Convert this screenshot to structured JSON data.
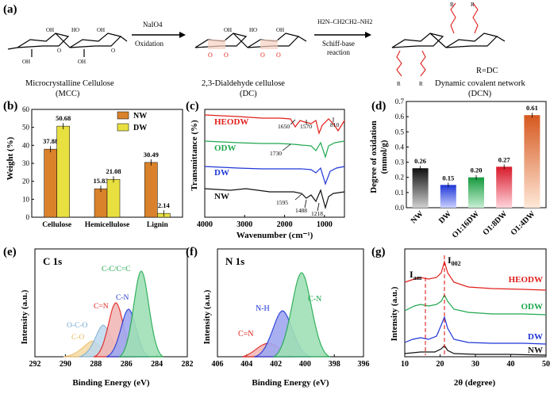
{
  "panels": {
    "a": {
      "label": "(a)",
      "step1_reagent": "NaIO4",
      "step1_name": "Oxidation",
      "step2_reagent": "H2N–CH2CH2–NH2",
      "step2_name_line1": "Schiff-base",
      "step2_name_line2": "reaction",
      "mcc_name": "Microcrystalline Cellulose",
      "mcc_abbr": "(MCC)",
      "dc_name": "2,3-Dialdehyde cellulose",
      "dc_abbr": "(DC)",
      "dcn_name": "Dynamic covalent network",
      "dcn_abbr": "(DCN)",
      "r_def": "R=DC"
    },
    "b": {
      "label": "(b)",
      "ylabel": "Weight (%)",
      "legend": [
        "NW",
        "DW"
      ],
      "colors": [
        "#d9822b",
        "#e8e040"
      ]
    },
    "c": {
      "label": "(c)",
      "xlabel": "Wavenumber (cm⁻¹)",
      "ylabel": "Transmittance (%)",
      "series_labels": [
        "HEODW",
        "ODW",
        "DW",
        "NW"
      ],
      "colors": [
        "#e0201b",
        "#1fa84e",
        "#1f36d6",
        "#111111"
      ],
      "annotations": [
        "1650",
        "1570",
        "810",
        "1730",
        "1595",
        "1488",
        "1218"
      ]
    },
    "d": {
      "label": "(d)",
      "ylabel_line1": "Degree of oxidation",
      "ylabel_line2": "(mmol/g)"
    },
    "e": {
      "label": "(e)",
      "title": "C 1s",
      "xlabel": "Binding Energy (eV)",
      "ylabel": "Intensity (a.u.)",
      "peaks": [
        "C-C/C=C",
        "C-N",
        "C=N",
        "O-C-O",
        "C-O"
      ]
    },
    "f": {
      "label": "(f)",
      "title": "N 1s",
      "xlabel": "Binding Energy (eV)",
      "ylabel": "Intensity (a.u.)",
      "peaks": [
        "C-N",
        "N-H",
        "C=N"
      ]
    },
    "g": {
      "label": "(g)",
      "xlabel": "2θ (degree)",
      "ylabel": "Intensity (a.u.)",
      "i_am": "Iam",
      "i_002": "I002",
      "series_labels": [
        "HEODW",
        "ODW",
        "DW",
        "NW"
      ]
    }
  },
  "chart_data": [
    {
      "panel": "b",
      "type": "bar",
      "categories": [
        "Cellulose",
        "Hemicellulose",
        "Lignin"
      ],
      "series": [
        {
          "name": "NW",
          "values": [
            37.88,
            15.83,
            30.49
          ]
        },
        {
          "name": "DW",
          "values": [
            50.68,
            21.08,
            2.14
          ]
        }
      ],
      "ylabel": "Weight (%)",
      "ylim": [
        0,
        60
      ],
      "yticks": [
        0,
        10,
        20,
        30,
        40,
        50,
        60
      ],
      "legend": "top-right"
    },
    {
      "panel": "c",
      "type": "line",
      "xlabel": "Wavenumber (cm⁻¹)",
      "ylabel": "Transmittance (%)",
      "xlim": [
        4000,
        500
      ],
      "xticks": [
        4000,
        3000,
        2000,
        1000
      ],
      "series": [
        "HEODW",
        "ODW",
        "DW",
        "NW"
      ]
    },
    {
      "panel": "d",
      "type": "bar",
      "categories": [
        "NW",
        "DW",
        "O1:16DW",
        "O1:8DW",
        "O1:4DW"
      ],
      "values": [
        0.26,
        0.15,
        0.2,
        0.27,
        0.61
      ],
      "ylim": [
        0.0,
        0.7
      ],
      "yticks": [
        0.0,
        0.1,
        0.2,
        0.3,
        0.4,
        0.5,
        0.6,
        0.7
      ]
    },
    {
      "panel": "e",
      "type": "area",
      "xlabel": "Binding Energy (eV)",
      "xlim": [
        292,
        282
      ],
      "xticks": [
        292,
        290,
        288,
        286,
        284,
        282
      ],
      "peaks": [
        {
          "name": "C-C/C=C",
          "center": 284.8
        },
        {
          "name": "C-N",
          "center": 285.6
        },
        {
          "name": "C=N",
          "center": 286.4
        },
        {
          "name": "O-C-O",
          "center": 287.6
        },
        {
          "name": "C-O",
          "center": 288.3
        }
      ]
    },
    {
      "panel": "f",
      "type": "area",
      "xlabel": "Binding Energy (eV)",
      "xlim": [
        406,
        396
      ],
      "xticks": [
        406,
        404,
        402,
        400,
        398,
        396
      ],
      "peaks": [
        {
          "name": "C-N",
          "center": 399.6
        },
        {
          "name": "N-H",
          "center": 401.0
        },
        {
          "name": "C=N",
          "center": 402.1
        }
      ]
    },
    {
      "panel": "g",
      "type": "line",
      "xlabel": "2θ (degree)",
      "xlim": [
        10,
        50
      ],
      "xticks": [
        10,
        20,
        30,
        40,
        50
      ],
      "series": [
        "HEODW",
        "ODW",
        "DW",
        "NW"
      ]
    }
  ]
}
